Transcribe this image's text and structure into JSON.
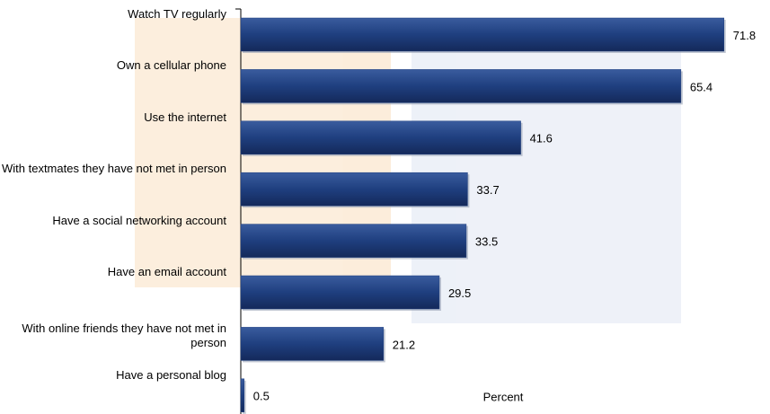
{
  "chart_data": {
    "type": "bar",
    "orientation": "horizontal",
    "categories": [
      "Watch TV regularly",
      "Own a cellular phone",
      "Use the internet",
      "With textmates they have not met in person",
      "Have a social networking account",
      "Have an email account",
      "With online friends they have not met in person",
      "Have a personal blog"
    ],
    "values": [
      71.8,
      65.4,
      41.6,
      33.7,
      33.5,
      29.5,
      21.2,
      0.5
    ],
    "color": "#1f3f7f",
    "xlabel": "Percent"
  }
}
